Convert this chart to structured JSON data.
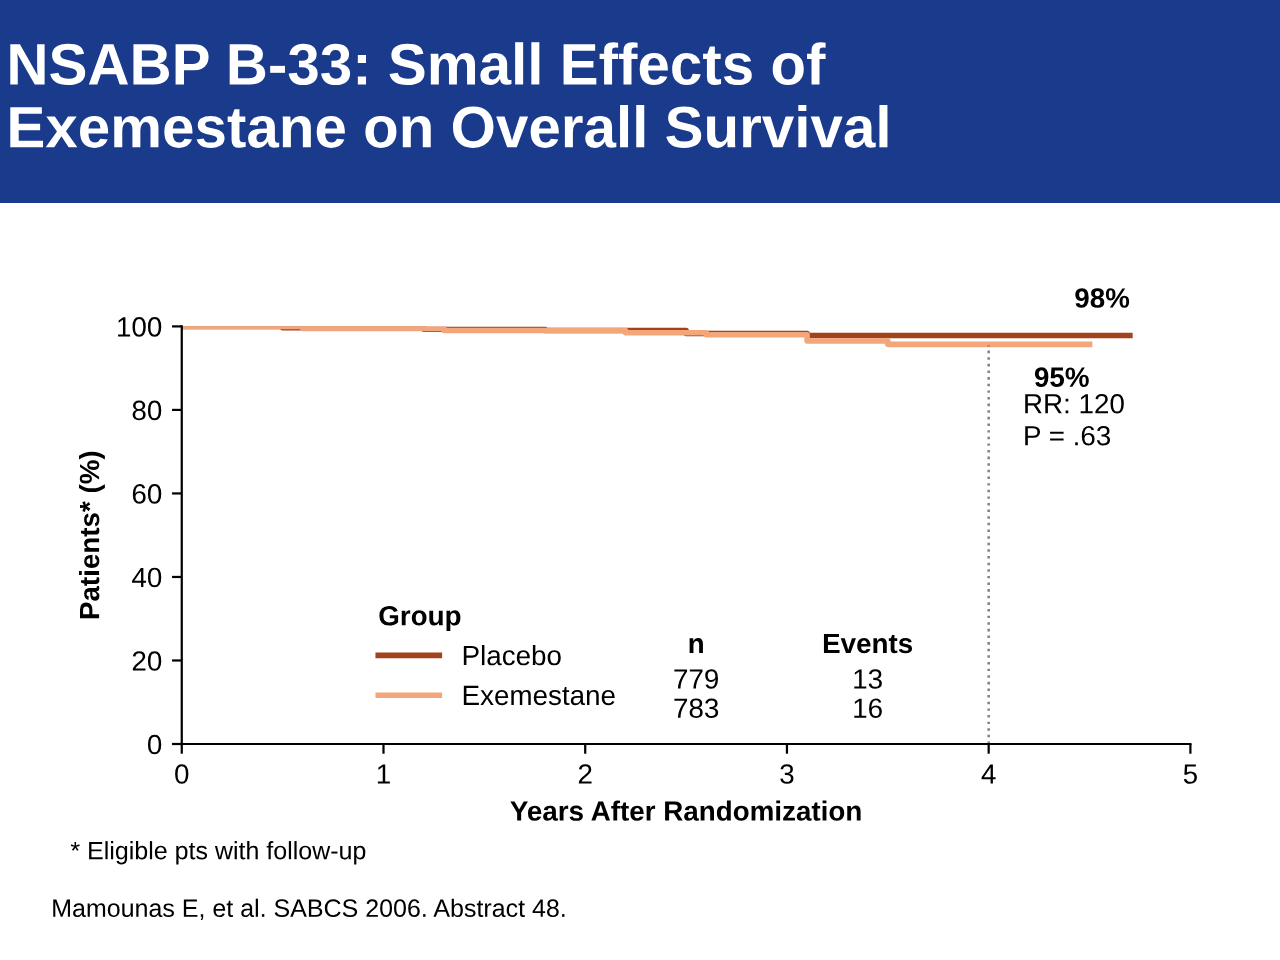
{
  "chart_data": {
    "type": "step",
    "title": "NSABP B-33: Small Effects of\nExemestane on Overall Survival",
    "xlabel": "Years After Randomization",
    "ylabel": "Patients* (%)",
    "legend_title": "Group",
    "legend": "bottom",
    "grid": false,
    "line_style": "solid",
    "marker": "none",
    "series": [
      {
        "name": "Placebo",
        "color": "#a3421c",
        "x": [
          0,
          0.5,
          1.2,
          1.8,
          2.5,
          3.1,
          4.7
        ],
        "values": [
          100,
          99.7,
          99.3,
          99,
          98.3,
          97.8,
          97.8
        ]
      },
      {
        "name": "Exemestane",
        "color": "#f2a679",
        "x": [
          0,
          0.6,
          1.3,
          2.2,
          2.6,
          3.1,
          3.5,
          4.5
        ],
        "values": [
          100,
          99.5,
          99,
          98.5,
          98,
          96.5,
          95.7,
          95.7
        ]
      }
    ],
    "xlim": [
      0,
      5
    ],
    "xticks": [
      0,
      1,
      2,
      3,
      4,
      5
    ],
    "ylim": [
      0,
      100
    ],
    "yticks": [
      0,
      20,
      40,
      60,
      80,
      100
    ],
    "ref_lines": [
      {
        "axis": "x",
        "value": 4,
        "color": "#808080",
        "line_style": "dotted"
      }
    ],
    "annotations": [
      {
        "text": "98%",
        "x": 4.7,
        "y": 97.8
      },
      {
        "text": "95%",
        "x": 4.5,
        "y": 95.7
      },
      "RR: 120\nP = .63",
      "n",
      "Events",
      "779",
      "13",
      "783",
      "16",
      "* Eligible pts with follow-up",
      "Mamounas E, et al. SABCS 2006. Abstract 48."
    ]
  }
}
